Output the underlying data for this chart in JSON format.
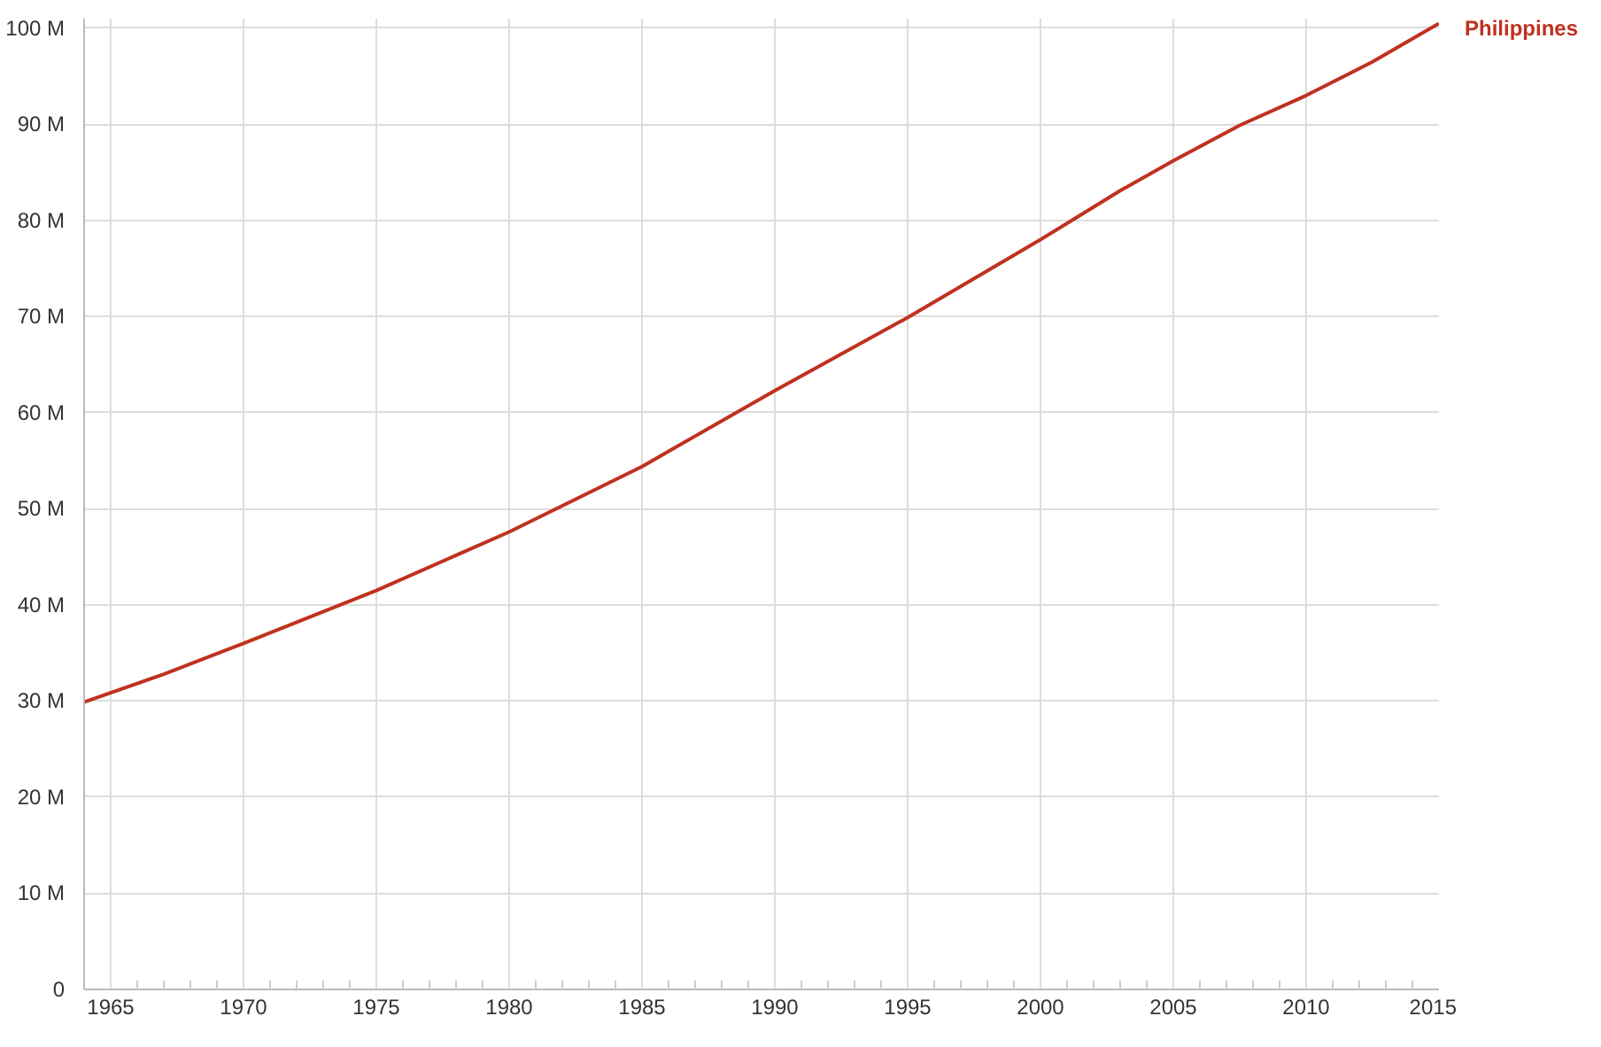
{
  "chart_data": {
    "type": "line",
    "x": [
      1964,
      1967,
      1970,
      1975,
      1980,
      1985,
      1990,
      1995,
      2000,
      2003,
      2005,
      2007.5,
      2010,
      2012.5,
      2015
    ],
    "series": [
      {
        "name": "Philippines",
        "color": "#c0311f",
        "values": [
          29.9,
          32.8,
          36.0,
          41.5,
          47.6,
          54.4,
          62.3,
          69.9,
          78.0,
          83.1,
          86.2,
          89.9,
          93.0,
          96.5,
          100.5
        ]
      }
    ],
    "xlim": [
      1964,
      2015
    ],
    "xticks": [
      1965,
      {
        "value": 1966,
        "label": null
      },
      {
        "value": 1967,
        "label": null
      },
      {
        "value": 1968,
        "label": null
      },
      {
        "value": 1969,
        "label": null
      },
      1970,
      {
        "value": 1971,
        "label": null
      },
      {
        "value": 1972,
        "label": null
      },
      {
        "value": 1973,
        "label": null
      },
      {
        "value": 1974,
        "label": null
      },
      1975,
      {
        "value": 1976,
        "label": null
      },
      {
        "value": 1977,
        "label": null
      },
      {
        "value": 1978,
        "label": null
      },
      {
        "value": 1979,
        "label": null
      },
      1980,
      {
        "value": 1981,
        "label": null
      },
      {
        "value": 1982,
        "label": null
      },
      {
        "value": 1983,
        "label": null
      },
      {
        "value": 1984,
        "label": null
      },
      1985,
      {
        "value": 1986,
        "label": null
      },
      {
        "value": 1987,
        "label": null
      },
      {
        "value": 1988,
        "label": null
      },
      {
        "value": 1989,
        "label": null
      },
      1990,
      {
        "value": 1991,
        "label": null
      },
      {
        "value": 1992,
        "label": null
      },
      {
        "value": 1993,
        "label": null
      },
      {
        "value": 1994,
        "label": null
      },
      1995,
      {
        "value": 1996,
        "label": null
      },
      {
        "value": 1997,
        "label": null
      },
      {
        "value": 1998,
        "label": null
      },
      {
        "value": 1999,
        "label": null
      },
      2000,
      {
        "value": 2001,
        "label": null
      },
      {
        "value": 2002,
        "label": null
      },
      {
        "value": 2003,
        "label": null
      },
      {
        "value": 2004,
        "label": null
      },
      2005,
      {
        "value": 2006,
        "label": null
      },
      {
        "value": 2007,
        "label": null
      },
      {
        "value": 2008,
        "label": null
      },
      {
        "value": 2009,
        "label": null
      },
      2010,
      {
        "value": 2011,
        "label": null
      },
      {
        "value": 2012,
        "label": null
      },
      {
        "value": 2013,
        "label": null
      },
      {
        "value": 2014,
        "label": null
      },
      2015
    ],
    "ylim": [
      0,
      101
    ],
    "yticks": [
      0,
      {
        "value": 10,
        "label": "10 M"
      },
      {
        "value": 20,
        "label": "20 M"
      },
      {
        "value": 30,
        "label": "30 M"
      },
      {
        "value": 40,
        "label": "40 M"
      },
      {
        "value": 50,
        "label": "50 M"
      },
      {
        "value": 60,
        "label": "60 M"
      },
      {
        "value": 70,
        "label": "70 M"
      },
      {
        "value": 80,
        "label": "80 M"
      },
      {
        "value": 90,
        "label": "90 M"
      },
      {
        "value": 100,
        "label": "100 M"
      }
    ],
    "grid": true,
    "line_style": "solid",
    "marker": "none"
  }
}
